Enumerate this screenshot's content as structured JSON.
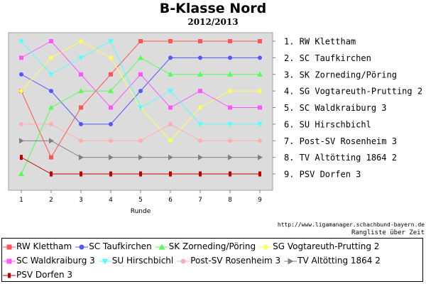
{
  "header": {
    "title": "B-Klasse Nord",
    "subtitle": "2012/2013"
  },
  "footer": {
    "credit": "http://www.ligamanager.schachbund-bayern.de",
    "caption": "Rangliste über Zeit"
  },
  "chart_data": {
    "type": "line",
    "xlabel": "Runde",
    "ylabel": "",
    "x": [
      1,
      2,
      3,
      4,
      5,
      6,
      7,
      8,
      9
    ],
    "ylim": [
      1,
      9
    ],
    "y_inverted": true,
    "grid": false,
    "background": "#dcdcdc",
    "rank_labels": [
      "1. RW Klettham",
      "2. SC Taufkirchen",
      "3. SK Zorneding/Pöring",
      "4. SG Vogtareuth-Prutting 2",
      "5. SC Waldkraiburg 3",
      "6. SU Hirschbichl",
      "7. Post-SV Rosenheim 3",
      "8. TV Altötting 1864 2",
      "9. PSV Dorfen 3"
    ],
    "legend_position": "bottom",
    "series": [
      {
        "name": "RW Klettham",
        "color": "#ff5555",
        "marker": "square",
        "values": [
          4,
          8,
          5,
          3,
          1,
          1,
          1,
          1,
          1
        ]
      },
      {
        "name": "SC Taufkirchen",
        "color": "#5555ff",
        "marker": "circle",
        "values": [
          3,
          4,
          6,
          6,
          4,
          2,
          2,
          2,
          2
        ]
      },
      {
        "name": "SK Zorneding/Pöring",
        "color": "#55ff55",
        "marker": "triangle-up",
        "values": [
          9,
          5,
          4,
          4,
          2,
          3,
          3,
          3,
          3
        ]
      },
      {
        "name": "SG Vogtareuth-Prutting 2",
        "color": "#ffff55",
        "marker": "circle",
        "values": [
          4,
          2,
          1,
          2,
          5,
          7,
          5,
          4,
          4
        ]
      },
      {
        "name": "SC Waldkraiburg 3",
        "color": "#ff55ff",
        "marker": "square",
        "values": [
          2,
          1,
          3,
          5,
          3,
          5,
          4,
          5,
          5
        ]
      },
      {
        "name": "SU Hirschbichl",
        "color": "#55ffff",
        "marker": "triangle-down",
        "values": [
          1,
          3,
          2,
          1,
          5,
          4,
          6,
          6,
          6
        ]
      },
      {
        "name": "Post-SV Rosenheim 3",
        "color": "#ffafaf",
        "marker": "circle",
        "values": [
          6,
          6,
          7,
          7,
          7,
          6,
          7,
          7,
          7
        ]
      },
      {
        "name": "TV Altötting 1864 2",
        "color": "#808080",
        "marker": "triangle-right",
        "values": [
          7,
          7,
          8,
          8,
          8,
          8,
          8,
          8,
          8
        ]
      },
      {
        "name": "PSV Dorfen 3",
        "color": "#c00000",
        "marker": "hbar",
        "values": [
          8,
          9,
          9,
          9,
          9,
          9,
          9,
          9,
          9
        ]
      }
    ]
  }
}
